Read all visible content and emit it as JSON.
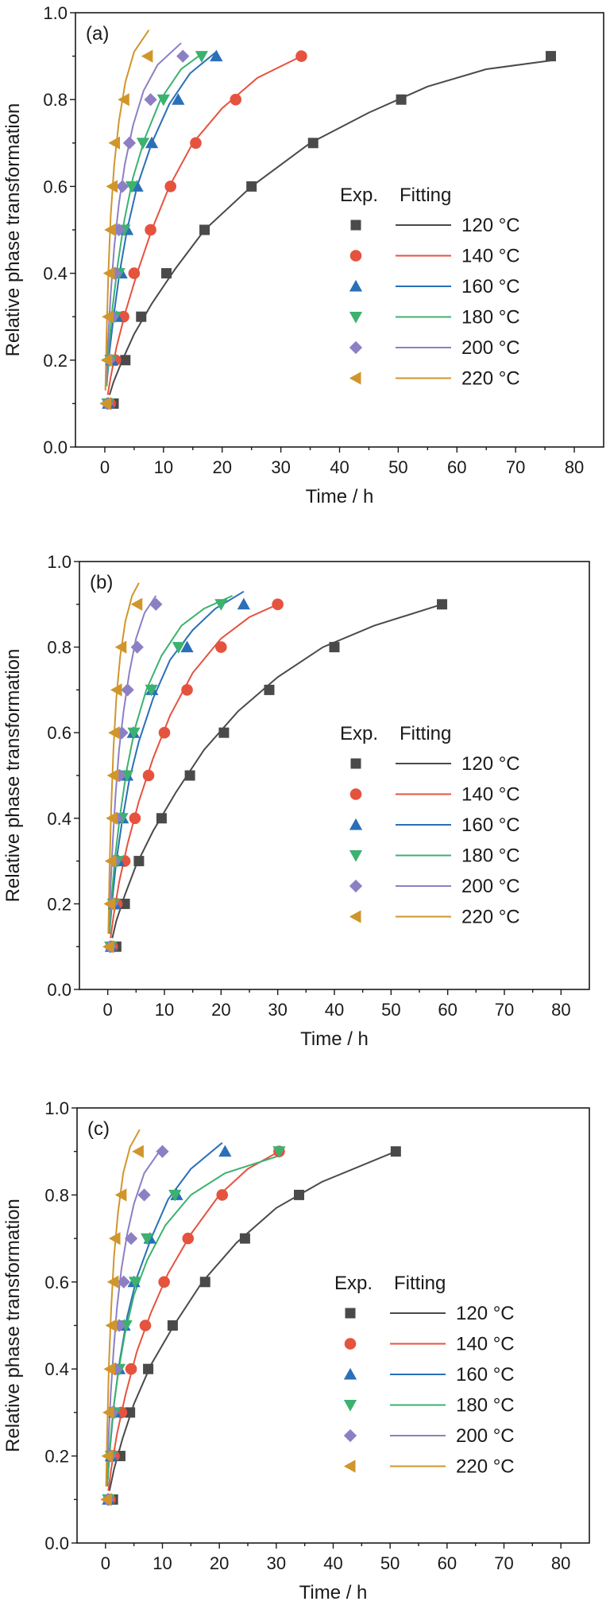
{
  "chart_data": [
    {
      "type": "scatter",
      "panel_label": "(a)",
      "xlabel": "Time / h",
      "ylabel": "Relative phase transformation",
      "xlim": [
        -5,
        85
      ],
      "ylim": [
        0,
        1.0
      ],
      "xticks": [
        "0",
        "10",
        "20",
        "30",
        "40",
        "50",
        "60",
        "70",
        "80"
      ],
      "yticks": [
        "0.0",
        "0.2",
        "0.4",
        "0.6",
        "0.8",
        "1.0"
      ],
      "legend": {
        "exp_header": "Exp.",
        "fit_header": "Fitting",
        "placement": "center-right"
      },
      "series": [
        {
          "name": "120 °C",
          "temp": "120",
          "marker": "square",
          "color": "#4a4a4a",
          "x": [
            1.5,
            3.5,
            6.2,
            10.5,
            17,
            25,
            35.5,
            50.5,
            76
          ],
          "y": [
            0.1,
            0.2,
            0.3,
            0.4,
            0.5,
            0.6,
            0.7,
            0.8,
            0.9
          ],
          "fit_x": [
            0.8,
            1.5,
            3,
            5,
            8,
            12,
            17,
            25,
            35,
            45,
            55,
            65,
            76
          ],
          "fit_y": [
            0.12,
            0.15,
            0.2,
            0.26,
            0.33,
            0.41,
            0.5,
            0.6,
            0.7,
            0.77,
            0.83,
            0.87,
            0.89
          ]
        },
        {
          "name": "140 °C",
          "temp": "140",
          "marker": "circle",
          "color": "#e5533f",
          "x": [
            0.9,
            1.8,
            3.2,
            5,
            7.8,
            11.2,
            15.5,
            22.3,
            33.5
          ],
          "y": [
            0.1,
            0.2,
            0.3,
            0.4,
            0.5,
            0.6,
            0.7,
            0.8,
            0.9
          ],
          "fit_x": [
            0.5,
            1,
            2,
            3.5,
            5.5,
            8,
            11,
            15,
            20,
            26,
            33.5
          ],
          "fit_y": [
            0.12,
            0.16,
            0.23,
            0.31,
            0.4,
            0.5,
            0.6,
            0.7,
            0.78,
            0.85,
            0.9
          ]
        },
        {
          "name": "160 °C",
          "temp": "160",
          "marker": "triangle-up",
          "color": "#2a6fb8",
          "x": [
            0.6,
            1.2,
            2,
            2.8,
            3.8,
            5.5,
            8,
            12.5,
            19
          ],
          "y": [
            0.1,
            0.2,
            0.3,
            0.4,
            0.5,
            0.6,
            0.7,
            0.8,
            0.9
          ],
          "fit_x": [
            0.3,
            0.8,
            1.5,
            2.5,
            3.8,
            5.5,
            8,
            11,
            14.5,
            19
          ],
          "fit_y": [
            0.14,
            0.22,
            0.3,
            0.4,
            0.5,
            0.6,
            0.7,
            0.79,
            0.86,
            0.91
          ]
        },
        {
          "name": "180 °C",
          "temp": "180",
          "marker": "triangle-down",
          "color": "#3bb26f",
          "x": [
            0.5,
            1,
            1.7,
            2.4,
            3.3,
            4.6,
            6.5,
            10,
            16.5
          ],
          "y": [
            0.1,
            0.2,
            0.3,
            0.4,
            0.5,
            0.6,
            0.7,
            0.8,
            0.9
          ],
          "fit_x": [
            0.3,
            0.7,
            1.3,
            2.2,
            3.3,
            4.8,
            6.8,
            9.5,
            13,
            17
          ],
          "fit_y": [
            0.14,
            0.23,
            0.32,
            0.42,
            0.52,
            0.62,
            0.71,
            0.8,
            0.87,
            0.91
          ]
        },
        {
          "name": "200 °C",
          "temp": "200",
          "marker": "diamond",
          "color": "#8d7fc4",
          "x": [
            0.4,
            0.8,
            1.3,
            1.8,
            2.4,
            3,
            4.2,
            7.8,
            13.3
          ],
          "y": [
            0.1,
            0.2,
            0.3,
            0.4,
            0.5,
            0.6,
            0.7,
            0.8,
            0.9
          ],
          "fit_x": [
            0.25,
            0.5,
            1,
            1.6,
            2.4,
            3.4,
            4.8,
            6.6,
            9,
            13
          ],
          "fit_y": [
            0.15,
            0.23,
            0.35,
            0.46,
            0.56,
            0.65,
            0.74,
            0.82,
            0.88,
            0.93
          ]
        },
        {
          "name": "220 °C",
          "temp": "220",
          "marker": "triangle-left",
          "color": "#d0962b",
          "x": [
            0.2,
            0.4,
            0.6,
            0.8,
            1,
            1.3,
            1.7,
            3.3,
            7.3
          ],
          "y": [
            0.1,
            0.2,
            0.3,
            0.4,
            0.5,
            0.6,
            0.7,
            0.8,
            0.9
          ],
          "fit_x": [
            0.1,
            0.3,
            0.6,
            1,
            1.6,
            2.4,
            3.5,
            5,
            7.5
          ],
          "fit_y": [
            0.13,
            0.26,
            0.4,
            0.53,
            0.65,
            0.75,
            0.84,
            0.91,
            0.96
          ]
        }
      ]
    },
    {
      "type": "scatter",
      "panel_label": "(b)",
      "xlabel": "Time / h",
      "ylabel": "Relative phase transformation",
      "xlim": [
        -5,
        85
      ],
      "ylim": [
        0,
        1.0
      ],
      "xticks": [
        "0",
        "10",
        "20",
        "30",
        "40",
        "50",
        "60",
        "70",
        "80"
      ],
      "yticks": [
        "0.0",
        "0.2",
        "0.4",
        "0.6",
        "0.8",
        "1.0"
      ],
      "legend": {
        "exp_header": "Exp.",
        "fit_header": "Fitting",
        "placement": "center-right"
      },
      "series": [
        {
          "name": "120 °C",
          "temp": "120",
          "marker": "square",
          "color": "#4a4a4a",
          "x": [
            1.5,
            3,
            5.5,
            9.5,
            14.5,
            20.5,
            28.5,
            40,
            59
          ],
          "y": [
            0.1,
            0.2,
            0.3,
            0.4,
            0.5,
            0.6,
            0.7,
            0.8,
            0.9
          ],
          "fit_x": [
            0.8,
            1.5,
            3,
            5,
            8,
            12,
            17,
            23,
            30,
            38,
            47,
            59
          ],
          "fit_y": [
            0.12,
            0.16,
            0.22,
            0.29,
            0.37,
            0.46,
            0.56,
            0.65,
            0.73,
            0.8,
            0.85,
            0.9
          ]
        },
        {
          "name": "140 °C",
          "temp": "140",
          "marker": "circle",
          "color": "#e5533f",
          "x": [
            0.8,
            1.6,
            3,
            4.8,
            7.2,
            10,
            14,
            20,
            30
          ],
          "y": [
            0.1,
            0.2,
            0.3,
            0.4,
            0.5,
            0.6,
            0.7,
            0.8,
            0.9
          ],
          "fit_x": [
            0.5,
            1,
            2,
            3.5,
            5.5,
            8,
            11,
            15,
            20,
            25,
            30
          ],
          "fit_y": [
            0.12,
            0.17,
            0.25,
            0.34,
            0.44,
            0.54,
            0.64,
            0.74,
            0.82,
            0.87,
            0.9
          ]
        },
        {
          "name": "160 °C",
          "temp": "160",
          "marker": "triangle-up",
          "color": "#2a6fb8",
          "x": [
            0.6,
            1.2,
            1.9,
            2.6,
            3.4,
            4.5,
            7.8,
            14,
            24
          ],
          "y": [
            0.1,
            0.2,
            0.3,
            0.4,
            0.5,
            0.6,
            0.7,
            0.8,
            0.9
          ],
          "fit_x": [
            0.3,
            0.8,
            1.5,
            2.5,
            3.8,
            5.5,
            8,
            11,
            15,
            19,
            24
          ],
          "fit_y": [
            0.13,
            0.21,
            0.3,
            0.39,
            0.49,
            0.58,
            0.68,
            0.77,
            0.84,
            0.89,
            0.93
          ]
        },
        {
          "name": "180 °C",
          "temp": "180",
          "marker": "triangle-down",
          "color": "#3bb26f",
          "x": [
            0.5,
            1,
            1.7,
            2.5,
            3.4,
            4.6,
            7.7,
            12.5,
            20
          ],
          "y": [
            0.1,
            0.2,
            0.3,
            0.4,
            0.5,
            0.6,
            0.7,
            0.8,
            0.9
          ],
          "fit_x": [
            0.3,
            0.7,
            1.3,
            2.2,
            3.3,
            4.8,
            6.8,
            9.5,
            13,
            17,
            22
          ],
          "fit_y": [
            0.13,
            0.22,
            0.31,
            0.41,
            0.51,
            0.61,
            0.7,
            0.78,
            0.85,
            0.89,
            0.92
          ]
        },
        {
          "name": "200 °C",
          "temp": "200",
          "marker": "diamond",
          "color": "#8d7fc4",
          "x": [
            0.4,
            0.7,
            1.1,
            1.6,
            2.1,
            2.5,
            3.5,
            5.2,
            8.5
          ],
          "y": [
            0.1,
            0.2,
            0.3,
            0.4,
            0.5,
            0.6,
            0.7,
            0.8,
            0.9
          ],
          "fit_x": [
            0.25,
            0.5,
            0.9,
            1.4,
            2,
            2.8,
            3.8,
            5,
            6.5,
            8.5
          ],
          "fit_y": [
            0.15,
            0.24,
            0.35,
            0.46,
            0.56,
            0.65,
            0.74,
            0.82,
            0.88,
            0.92
          ]
        },
        {
          "name": "220 °C",
          "temp": "220",
          "marker": "triangle-left",
          "color": "#d0962b",
          "x": [
            0.2,
            0.4,
            0.6,
            0.8,
            1,
            1.2,
            1.6,
            2.4,
            5.2
          ],
          "y": [
            0.1,
            0.2,
            0.3,
            0.4,
            0.5,
            0.6,
            0.7,
            0.8,
            0.9
          ],
          "fit_x": [
            0.1,
            0.3,
            0.6,
            1,
            1.5,
            2.2,
            3.1,
            4.3,
            5.5
          ],
          "fit_y": [
            0.13,
            0.27,
            0.42,
            0.56,
            0.68,
            0.78,
            0.86,
            0.92,
            0.95
          ]
        }
      ]
    },
    {
      "type": "scatter",
      "panel_label": "(c)",
      "xlabel": "Time / h",
      "ylabel": "Relative phase transformation",
      "xlim": [
        -5,
        85
      ],
      "ylim": [
        0,
        1.0
      ],
      "xticks": [
        "0",
        "10",
        "20",
        "30",
        "40",
        "50",
        "60",
        "70",
        "80"
      ],
      "yticks": [
        "0.0",
        "0.2",
        "0.4",
        "0.6",
        "0.8",
        "1.0"
      ],
      "legend": {
        "exp_header": "Exp.",
        "fit_header": "Fitting",
        "placement": "center-right"
      },
      "series": [
        {
          "name": "120 °C",
          "temp": "120",
          "marker": "square",
          "color": "#4a4a4a",
          "x": [
            1.3,
            2.6,
            4.3,
            7.5,
            11.8,
            17.5,
            24.5,
            34,
            51
          ],
          "y": [
            0.1,
            0.2,
            0.3,
            0.4,
            0.5,
            0.6,
            0.7,
            0.8,
            0.9
          ],
          "fit_x": [
            0.7,
            1.5,
            3,
            5,
            8,
            12,
            17,
            23,
            30,
            38,
            51
          ],
          "fit_y": [
            0.12,
            0.17,
            0.24,
            0.32,
            0.41,
            0.5,
            0.6,
            0.69,
            0.77,
            0.83,
            0.9
          ]
        },
        {
          "name": "140 °C",
          "temp": "140",
          "marker": "circle",
          "color": "#e5533f",
          "x": [
            0.8,
            1.5,
            2.8,
            4.5,
            7,
            10.3,
            14.5,
            20.5,
            30.5
          ],
          "y": [
            0.1,
            0.2,
            0.3,
            0.4,
            0.5,
            0.6,
            0.7,
            0.8,
            0.9
          ],
          "fit_x": [
            0.5,
            1,
            2,
            3.5,
            5.5,
            8,
            11,
            15,
            20,
            25,
            30.5
          ],
          "fit_y": [
            0.12,
            0.17,
            0.25,
            0.34,
            0.44,
            0.53,
            0.62,
            0.71,
            0.8,
            0.86,
            0.9
          ]
        },
        {
          "name": "160 °C",
          "temp": "160",
          "marker": "triangle-up",
          "color": "#2a6fb8",
          "x": [
            0.5,
            1,
            1.6,
            2.4,
            3.3,
            5,
            7.8,
            12.5,
            21
          ],
          "y": [
            0.1,
            0.2,
            0.3,
            0.4,
            0.5,
            0.6,
            0.7,
            0.8,
            0.9
          ],
          "fit_x": [
            0.3,
            0.8,
            1.5,
            2.5,
            3.8,
            5.5,
            8,
            11,
            15,
            20.5
          ],
          "fit_y": [
            0.13,
            0.22,
            0.32,
            0.42,
            0.52,
            0.61,
            0.7,
            0.79,
            0.86,
            0.92
          ]
        },
        {
          "name": "180 °C",
          "temp": "180",
          "marker": "triangle-down",
          "color": "#3bb26f",
          "x": [
            0.5,
            1,
            1.6,
            2.4,
            3.6,
            5.2,
            7.3,
            12.2,
            30.5
          ],
          "y": [
            0.1,
            0.2,
            0.3,
            0.4,
            0.5,
            0.6,
            0.7,
            0.8,
            0.9
          ],
          "fit_x": [
            0.3,
            0.7,
            1.3,
            2.2,
            3.4,
            5,
            7.3,
            10.5,
            15,
            21,
            30.5
          ],
          "fit_y": [
            0.13,
            0.21,
            0.3,
            0.39,
            0.48,
            0.57,
            0.65,
            0.73,
            0.8,
            0.85,
            0.89
          ]
        },
        {
          "name": "200 °C",
          "temp": "200",
          "marker": "diamond",
          "color": "#8d7fc4",
          "x": [
            0.4,
            0.8,
            1.2,
            1.8,
            2.4,
            3.2,
            4.5,
            6.8,
            10
          ],
          "y": [
            0.1,
            0.2,
            0.3,
            0.4,
            0.5,
            0.6,
            0.7,
            0.8,
            0.9
          ],
          "fit_x": [
            0.25,
            0.5,
            0.9,
            1.4,
            2,
            2.8,
            3.8,
            5,
            6.8,
            10
          ],
          "fit_y": [
            0.15,
            0.23,
            0.34,
            0.44,
            0.54,
            0.63,
            0.71,
            0.78,
            0.85,
            0.91
          ]
        },
        {
          "name": "220 °C",
          "temp": "220",
          "marker": "triangle-left",
          "color": "#d0962b",
          "x": [
            0.2,
            0.4,
            0.6,
            0.8,
            1.1,
            1.4,
            1.7,
            2.8,
            5.8
          ],
          "y": [
            0.1,
            0.2,
            0.3,
            0.4,
            0.5,
            0.6,
            0.7,
            0.8,
            0.9
          ],
          "fit_x": [
            0.1,
            0.3,
            0.6,
            1,
            1.5,
            2.2,
            3.1,
            4.3,
            6
          ],
          "fit_y": [
            0.13,
            0.26,
            0.41,
            0.54,
            0.66,
            0.76,
            0.85,
            0.91,
            0.95
          ]
        }
      ]
    }
  ]
}
